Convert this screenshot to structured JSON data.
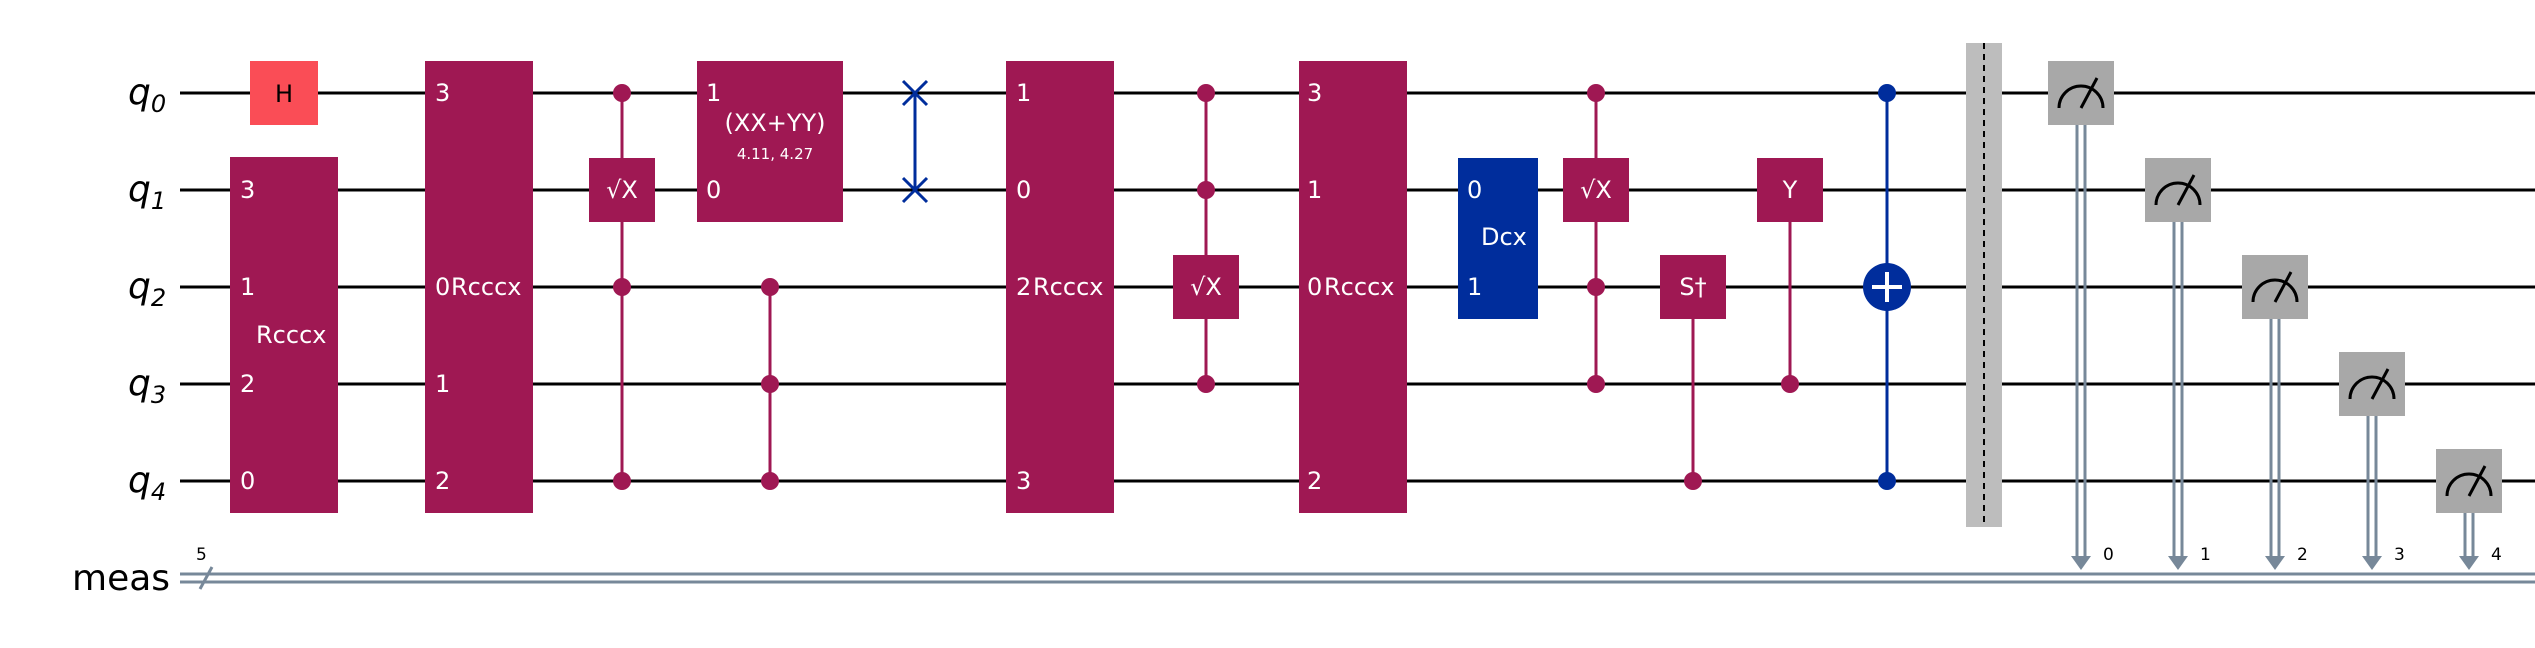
{
  "colors": {
    "wire": "#000000",
    "classical": "#778899",
    "multi": "#9f1853",
    "hadamard": "#fa4d56",
    "blue": "#002d9c",
    "measure": "#a8a8a8",
    "barrier": "#bdbdbd"
  },
  "labels": {
    "q0": "0",
    "q1": "1",
    "q2": "2",
    "q3": "3",
    "q4": "4",
    "q": "q",
    "meas": "meas",
    "meas_width": "5",
    "cbit0": "0",
    "cbit1": "1",
    "cbit2": "2",
    "cbit3": "3",
    "cbit4": "4"
  },
  "gates": {
    "h": "H",
    "rcccx": "Rcccx",
    "sx": "√X",
    "xx_yy": "(XX+YY)",
    "xx_yy_params": "4.11, 4.27",
    "dcx": "Dcx",
    "sdg": "S†",
    "y": "Y"
  },
  "ports": {
    "g1": [
      "3",
      "1",
      "2",
      "0"
    ],
    "g2": [
      "3",
      "0",
      "1",
      "2"
    ],
    "g3": [
      "1",
      "0"
    ],
    "g4": [
      "1",
      "0",
      "2",
      "3"
    ],
    "g5": [
      "3",
      "1",
      "0",
      "2"
    ],
    "g6": [
      "0",
      "1"
    ]
  }
}
